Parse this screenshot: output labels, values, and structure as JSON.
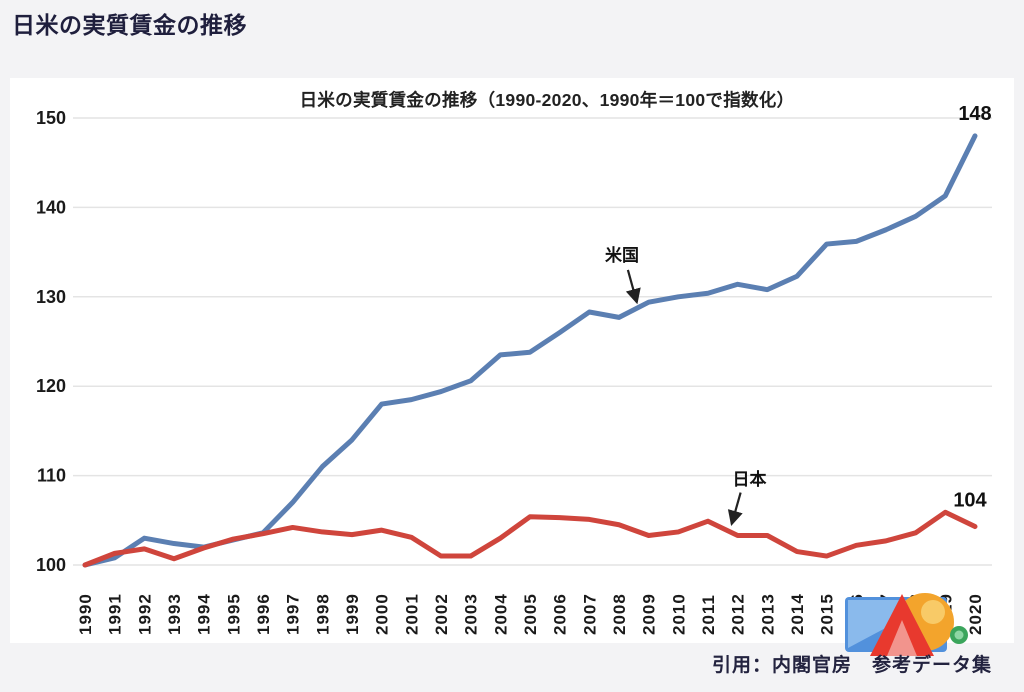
{
  "page": {
    "title": "日米の実質賃金の推移",
    "footer": "引用：内閣官房　参考データ集"
  },
  "chart_data": {
    "type": "line",
    "title": "日米の実質賃金の推移（1990-2020、1990年＝100で指数化）",
    "xlabel": "",
    "ylabel": "",
    "ylim": [
      100,
      150
    ],
    "yticks": [
      100,
      110,
      120,
      130,
      140,
      150
    ],
    "grid": true,
    "legend_position": "none",
    "x": [
      1990,
      1991,
      1992,
      1993,
      1994,
      1995,
      1996,
      1997,
      1998,
      1999,
      2000,
      2001,
      2002,
      2003,
      2004,
      2005,
      2006,
      2007,
      2008,
      2009,
      2010,
      2011,
      2012,
      2013,
      2014,
      2015,
      2016,
      2017,
      2018,
      2019,
      2020
    ],
    "series": [
      {
        "name": "米国",
        "color": "#5b7fb2",
        "end_label": "148",
        "values": [
          100,
          100.8,
          103,
          102.4,
          102,
          102.8,
          103.6,
          107,
          111,
          114,
          118,
          118.5,
          119.4,
          120.6,
          123.5,
          123.8,
          126,
          128.3,
          127.7,
          129.4,
          130,
          130.4,
          131.4,
          130.8,
          132.3,
          135.9,
          136.2,
          137.5,
          139,
          141.3,
          148
        ]
      },
      {
        "name": "日本",
        "color": "#cf453c",
        "end_label": "104",
        "values": [
          100,
          101.3,
          101.8,
          100.7,
          101.9,
          102.9,
          103.5,
          104.2,
          103.7,
          103.4,
          103.9,
          103.1,
          101,
          101,
          103,
          105.4,
          105.3,
          105.1,
          104.5,
          103.3,
          103.7,
          104.9,
          103.3,
          103.3,
          101.5,
          101,
          102.2,
          102.7,
          103.6,
          105.9,
          104.3
        ]
      }
    ],
    "annotations": [
      {
        "label": "米国",
        "label_x": 2008.1,
        "label_v": 134.7,
        "arrow": [
          [
            2008.3,
            133.0
          ],
          [
            2008.6,
            129.4
          ]
        ]
      },
      {
        "label": "日本",
        "label_x": 2012.4,
        "label_v": 109.6,
        "arrow": [
          [
            2012.1,
            108.1
          ],
          [
            2011.8,
            104.6
          ]
        ]
      }
    ],
    "gridline_color": "#e4e4e4",
    "arrow_color": "#222222"
  },
  "watermark": {
    "rect_blue": "#5291dc",
    "rect_blue_light": "#8abaec",
    "triangle_red": "#e8392e",
    "triangle_red_light": "#f2948d",
    "circle_yellow": "#f3a42c",
    "circle_yellow_light": "#f8ca67",
    "badge_green": "#3ba55c",
    "badge_green_light": "#8ed6a4"
  }
}
